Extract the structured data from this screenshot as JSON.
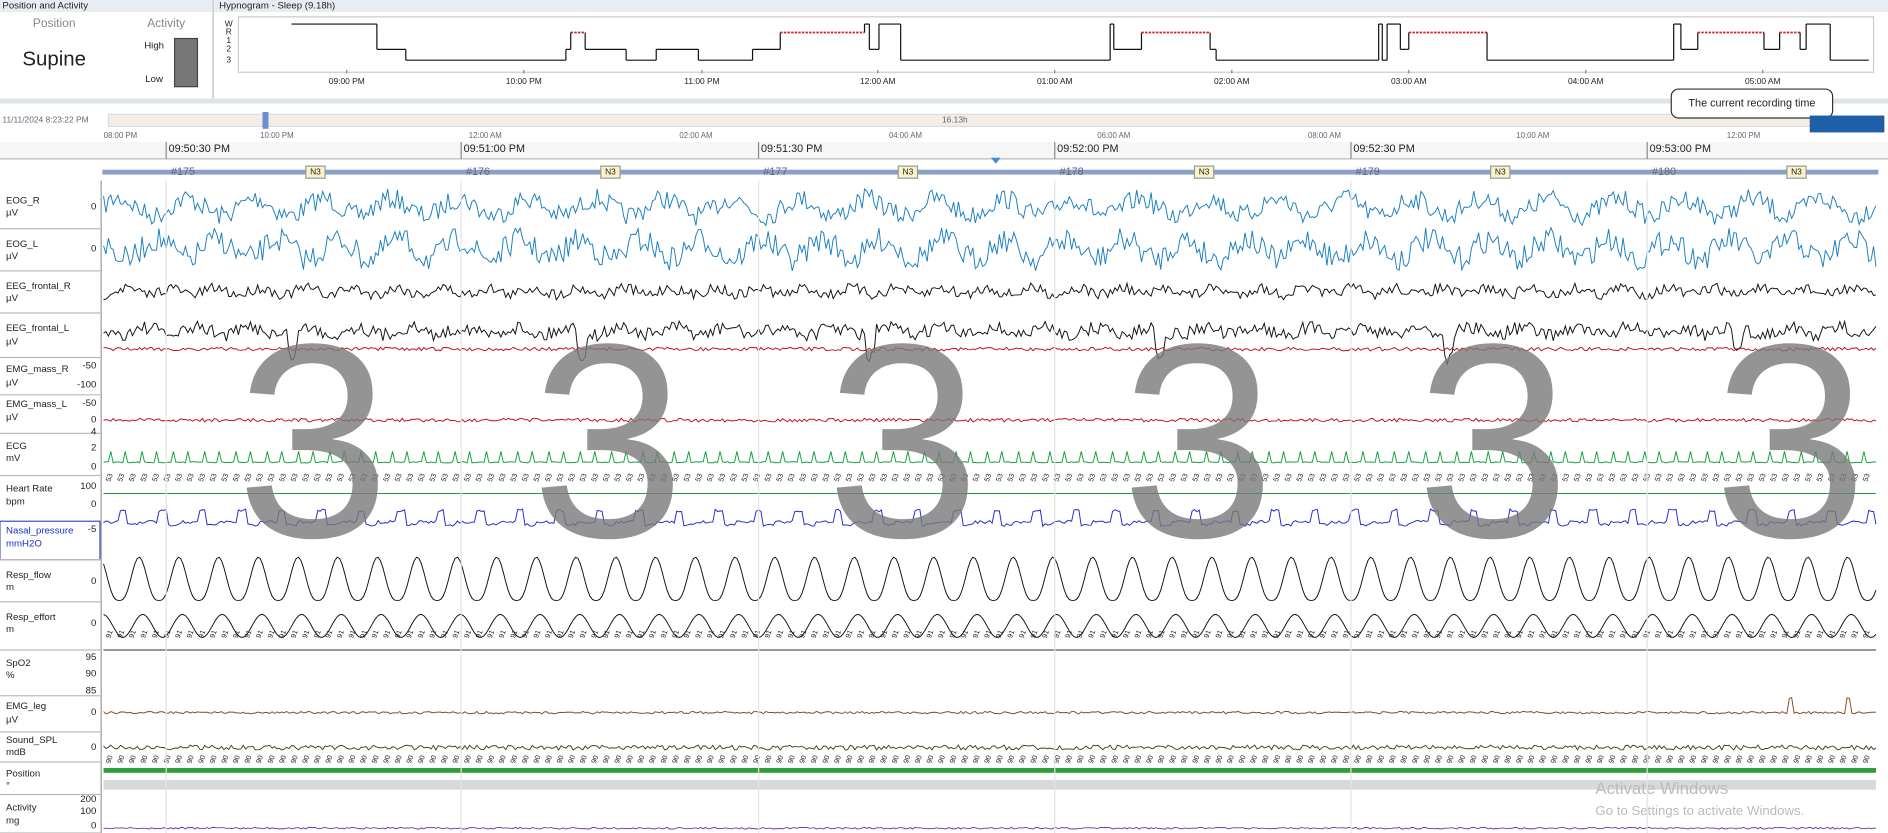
{
  "left_panel": {
    "header": "Position and Activity",
    "position_heading": "Position",
    "activity_heading": "Activity",
    "position_value": "Supine",
    "activity_high": "High",
    "activity_low": "Low"
  },
  "hypnogram": {
    "title": "Hypnogram - Sleep (9.18h)",
    "stages": [
      "W",
      "R",
      "1",
      "2",
      "3"
    ],
    "times": [
      "09:00 PM",
      "10:00 PM",
      "11:00 PM",
      "12:00 AM",
      "01:00 AM",
      "02:00 AM",
      "03:00 AM",
      "04:00 AM",
      "05:00 AM"
    ]
  },
  "overview": {
    "start": "11/11/2024 8:23:22 PM",
    "times": [
      "08:00 PM",
      "10:00 PM",
      "12:00 AM",
      "02:00 AM",
      "04:00 AM",
      "06:00 AM",
      "08:00 AM",
      "10:00 AM",
      "12:00 PM"
    ],
    "duration": "16.13h",
    "tooltip": "The current recording time"
  },
  "ruler": {
    "times": [
      "09:50:30 PM",
      "09:51:00 PM",
      "09:51:30 PM",
      "09:52:00 PM",
      "09:52:30 PM",
      "09:53:00 PM"
    ],
    "epochs": [
      "#175",
      "#176",
      "#177",
      "#178",
      "#179",
      "#180"
    ],
    "epoch_stage": "N3"
  },
  "stage_overlay": "3",
  "channels": [
    {
      "name": "EOG_R",
      "unit": "µV",
      "scale": [
        0
      ]
    },
    {
      "name": "EOG_L",
      "unit": "µV",
      "scale": [
        0
      ]
    },
    {
      "name": "EEG_frontal_R",
      "unit": "µV",
      "scale": []
    },
    {
      "name": "EEG_frontal_L",
      "unit": "µV",
      "scale": []
    },
    {
      "name": "EMG_mass_R",
      "unit": "µV",
      "scale": [
        -50,
        -100
      ]
    },
    {
      "name": "EMG_mass_L",
      "unit": "µV",
      "scale": [
        -50,
        0
      ]
    },
    {
      "name": "ECG",
      "unit": "mV",
      "scale": [
        4,
        2,
        0
      ]
    },
    {
      "name": "Heart Rate",
      "unit": "bpm",
      "scale": [
        100,
        0
      ]
    },
    {
      "name": "Nasal_pressure",
      "unit": "mmH2O",
      "scale": [
        -5
      ]
    },
    {
      "name": "Resp_flow",
      "unit": "m",
      "scale": [
        0
      ]
    },
    {
      "name": "Resp_effort",
      "unit": "m",
      "scale": [
        0
      ]
    },
    {
      "name": "SpO2",
      "unit": "%",
      "scale": [
        95,
        90,
        85
      ]
    },
    {
      "name": "EMG_leg",
      "unit": "µV",
      "scale": [
        0
      ]
    },
    {
      "name": "Sound_SPL",
      "unit": "mdB",
      "scale": [
        0
      ]
    },
    {
      "name": "Position",
      "unit": "°",
      "scale": []
    },
    {
      "name": "Activity",
      "unit": "mg",
      "scale": [
        200,
        100,
        0
      ]
    }
  ],
  "inline_labels": {
    "heart_rate": "53",
    "spo2": "91",
    "position": "90"
  },
  "watermark": {
    "title": "Activate Windows",
    "subtitle": "Go to Settings to activate Windows."
  }
}
